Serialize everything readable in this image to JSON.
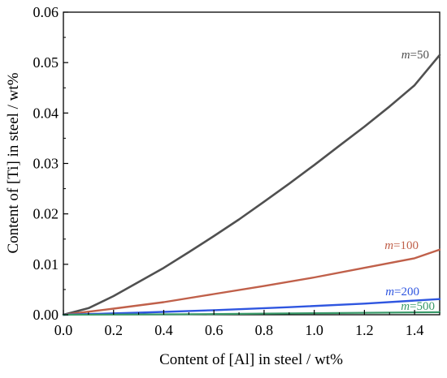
{
  "chart_data": {
    "type": "line",
    "xlabel": "Content of [Al] in steel / wt%",
    "ylabel": "Content of [Ti] in steel / wt%",
    "xlim": [
      0.0,
      1.5
    ],
    "ylim": [
      0.0,
      0.06
    ],
    "x_ticks": [
      "0.0",
      "0.2",
      "0.4",
      "0.6",
      "0.8",
      "1.0",
      "1.2",
      "1.4"
    ],
    "y_ticks": [
      "0.00",
      "0.01",
      "0.02",
      "0.03",
      "0.04",
      "0.05",
      "0.06"
    ],
    "grid": false,
    "series": [
      {
        "name": "m=50",
        "label_var": "m",
        "label_val": "=50",
        "color": "#505050",
        "x": [
          0.0,
          0.1,
          0.2,
          0.3,
          0.4,
          0.5,
          0.6,
          0.7,
          0.8,
          0.9,
          1.0,
          1.1,
          1.2,
          1.3,
          1.4,
          1.5
        ],
        "y": [
          0.0,
          0.0013,
          0.0037,
          0.0065,
          0.0093,
          0.0124,
          0.0156,
          0.0189,
          0.0224,
          0.026,
          0.0297,
          0.0335,
          0.0373,
          0.0413,
          0.0455,
          0.0515
        ]
      },
      {
        "name": "m=100",
        "label_var": "m",
        "label_val": "=100",
        "color": "#c0604a",
        "x": [
          0.0,
          0.2,
          0.4,
          0.6,
          0.8,
          1.0,
          1.2,
          1.4,
          1.5
        ],
        "y": [
          0.0,
          0.0012,
          0.0025,
          0.0041,
          0.0057,
          0.0074,
          0.0093,
          0.0112,
          0.0129
        ]
      },
      {
        "name": "m=200",
        "label_var": "m",
        "label_val": "=200",
        "color": "#2f56e0",
        "x": [
          0.0,
          0.3,
          0.6,
          0.9,
          1.2,
          1.5
        ],
        "y": [
          0.0,
          0.0004,
          0.0009,
          0.0015,
          0.0022,
          0.0031
        ]
      },
      {
        "name": "m=500",
        "label_var": "m",
        "label_val": "=500",
        "color": "#3a9a6a",
        "x": [
          0.0,
          0.5,
          1.0,
          1.5
        ],
        "y": [
          0.0,
          0.0001,
          0.0003,
          0.0005
        ]
      }
    ]
  }
}
